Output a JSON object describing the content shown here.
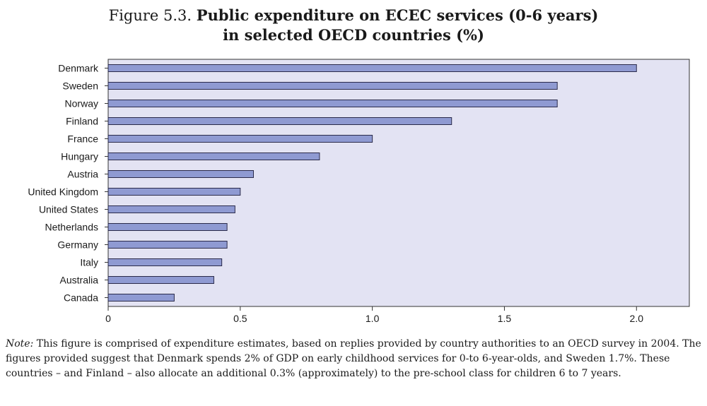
{
  "figure": {
    "label": "Figure 5.3.",
    "title_line1": "Public expenditure on ECEC services (0-6 years)",
    "title_line2": "in selected OECD countries (%)"
  },
  "chart_data": {
    "type": "bar",
    "orientation": "horizontal",
    "title": "Public expenditure on ECEC services (0-6 years) in selected OECD countries (%)",
    "categories": [
      "Denmark",
      "Sweden",
      "Norway",
      "Finland",
      "France",
      "Hungary",
      "Austria",
      "United Kingdom",
      "United States",
      "Netherlands",
      "Germany",
      "Italy",
      "Australia",
      "Canada"
    ],
    "values": [
      2.0,
      1.7,
      1.7,
      1.3,
      1.0,
      0.8,
      0.55,
      0.5,
      0.48,
      0.45,
      0.45,
      0.43,
      0.4,
      0.25
    ],
    "xlim": [
      0,
      2.2
    ],
    "xticks": [
      0,
      0.5,
      1.0,
      1.5,
      2.0
    ],
    "xtick_labels": [
      "0",
      "0.5",
      "1.0",
      "1.5",
      "2.0"
    ],
    "xlabel": "",
    "ylabel": "",
    "grid": false,
    "colors": {
      "plot_bg": "#e3e3f3",
      "bar_fill": "#8f9ad2",
      "bar_stroke": "#2a2a4a",
      "frame": "#333333"
    }
  },
  "note": {
    "label": "Note:",
    "text": "This figure is comprised of expenditure estimates, based on replies provided by country authorities to an OECD survey in 2004. The figures provided suggest that Denmark spends 2% of GDP on early childhood services for 0-to 6-year-olds, and Sweden 1.7%. These countries – and Finland – also allocate an additional 0.3% (approximately) to the pre-school class for children 6 to 7 years."
  }
}
